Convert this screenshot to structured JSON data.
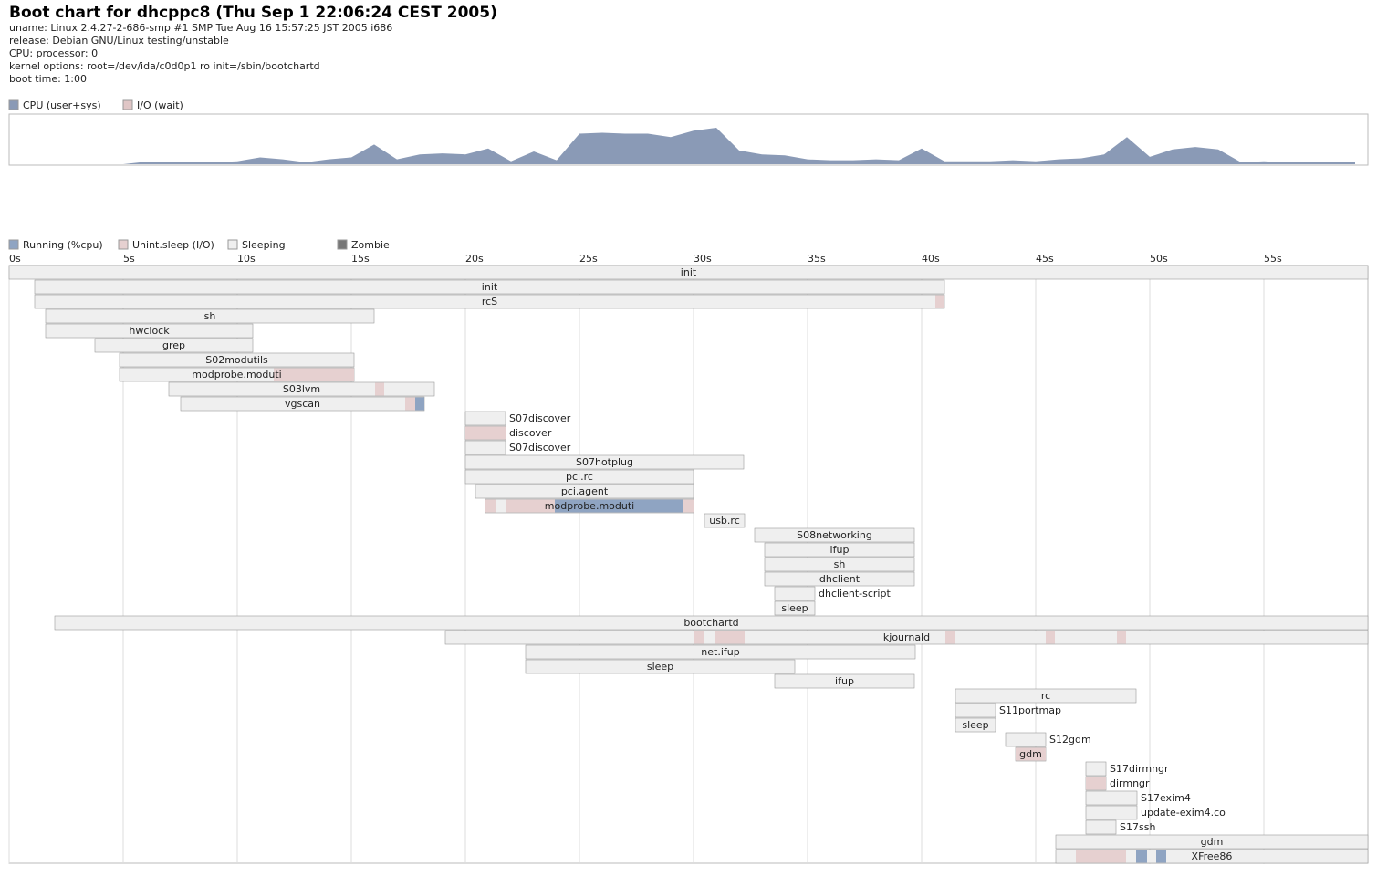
{
  "header": {
    "title": "Boot chart for dhcppc8 (Thu Sep  1 22:06:24 CEST 2005)",
    "info": [
      "uname: Linux 2.4.27-2-686-smp #1 SMP Tue Aug 16 15:57:25 JST 2005 i686",
      "release: Debian GNU/Linux testing/unstable",
      "CPU: processor: 0",
      "kernel options: root=/dev/ida/c0d0p1 ro init=/sbin/bootchartd",
      "boot time: 1:00"
    ]
  },
  "chart_data": [
    {
      "type": "area",
      "xlim": [
        0,
        59.56
      ],
      "ylim": [
        0,
        100
      ],
      "x": [
        0,
        1,
        2,
        3,
        4,
        5,
        6,
        7,
        8,
        9,
        10,
        11,
        12,
        13,
        14,
        15,
        16,
        17,
        18,
        19,
        20,
        21,
        22,
        23,
        24,
        25,
        26,
        27,
        28,
        29,
        30,
        31,
        32,
        33,
        34,
        35,
        36,
        37,
        38,
        39,
        40,
        41,
        42,
        43,
        44,
        45,
        46,
        47,
        48,
        49,
        50,
        51,
        52,
        53,
        54,
        55,
        56,
        57,
        58,
        59
      ],
      "series": [
        {
          "name": "CPU (user+sys)",
          "color": "#8a9ab6",
          "values": [
            0,
            0,
            0,
            0,
            0,
            0,
            5,
            4,
            4,
            4,
            6,
            14,
            10,
            4,
            10,
            14,
            40,
            10,
            20,
            22,
            20,
            32,
            6,
            26,
            8,
            62,
            64,
            62,
            62,
            55,
            68,
            74,
            28,
            20,
            18,
            10,
            8,
            8,
            10,
            8,
            32,
            6,
            6,
            6,
            8,
            6,
            10,
            12,
            20,
            55,
            15,
            30,
            35,
            30,
            4,
            6,
            4,
            4,
            4,
            4
          ]
        },
        {
          "name": "I/O (wait)",
          "color": "#e0c6c6",
          "values": [
            0,
            0,
            0,
            0,
            0,
            0,
            0,
            0,
            0,
            0,
            0,
            0,
            0,
            0,
            0,
            0,
            0,
            0,
            0,
            0,
            0,
            0,
            0,
            0,
            0,
            0,
            0,
            0,
            0,
            0,
            0,
            0,
            0,
            0,
            0,
            0,
            0,
            0,
            0,
            0,
            0,
            0,
            0,
            0,
            0,
            0,
            0,
            0,
            0,
            0,
            0,
            0,
            0,
            0,
            0,
            0,
            0,
            0,
            0,
            0
          ]
        }
      ]
    },
    {
      "type": "gantt",
      "xlim": [
        0,
        59.56
      ],
      "xticks": [
        {
          "value": 0,
          "label": "0s"
        },
        {
          "value": 5,
          "label": "5s"
        },
        {
          "value": 10,
          "label": "10s"
        },
        {
          "value": 15,
          "label": "15s"
        },
        {
          "value": 20,
          "label": "20s"
        },
        {
          "value": 25,
          "label": "25s"
        },
        {
          "value": 30,
          "label": "30s"
        },
        {
          "value": 35,
          "label": "35s"
        },
        {
          "value": 40,
          "label": "40s"
        },
        {
          "value": 45,
          "label": "45s"
        },
        {
          "value": 50,
          "label": "50s"
        },
        {
          "value": 55,
          "label": "55s"
        }
      ],
      "states": [
        {
          "name": "Running (%cpu)",
          "color": "#8fa4c2"
        },
        {
          "name": "Unint.sleep (I/O)",
          "color": "#e6d0d0"
        },
        {
          "name": "Sleeping",
          "color": "#efefef"
        },
        {
          "name": "Zombie",
          "color": "#777777"
        }
      ],
      "processes": [
        {
          "name": "init",
          "start": 0,
          "end": 59.56
        },
        {
          "name": "init",
          "start": 1.12,
          "end": 41.0
        },
        {
          "name": "rcS",
          "start": 1.12,
          "end": 41.0,
          "io": [
            [
              40.6,
              41.0
            ]
          ]
        },
        {
          "name": "sh",
          "start": 1.6,
          "end": 16.0
        },
        {
          "name": "hwclock",
          "start": 1.6,
          "end": 10.68
        },
        {
          "name": "grep",
          "start": 3.76,
          "end": 10.68
        },
        {
          "name": "S02modutils",
          "start": 4.84,
          "end": 15.12
        },
        {
          "name": "modprobe.moduti",
          "start": 4.84,
          "end": 15.12,
          "io": [
            [
              11.6,
              15.12
            ]
          ]
        },
        {
          "name": "S03lvm",
          "start": 7.0,
          "end": 18.64,
          "io": [
            [
              16.04,
              16.44
            ]
          ]
        },
        {
          "name": "vgscan",
          "start": 7.52,
          "end": 18.2,
          "io": [
            [
              17.36,
              17.8
            ]
          ],
          "running": [
            [
              17.8,
              18.2
            ]
          ]
        },
        {
          "name": "S07discover",
          "start": 20.0,
          "end": 21.76
        },
        {
          "name": "discover",
          "start": 20.0,
          "end": 21.76,
          "io": [
            [
              20.0,
              21.76
            ]
          ]
        },
        {
          "name": "S07discover",
          "start": 20.0,
          "end": 21.76
        },
        {
          "name": "S07hotplug",
          "start": 20.0,
          "end": 32.2
        },
        {
          "name": "pci.rc",
          "start": 20.0,
          "end": 30.0
        },
        {
          "name": "pci.agent",
          "start": 20.44,
          "end": 30.0
        },
        {
          "name": "modprobe.moduti",
          "start": 20.88,
          "end": 30.0,
          "io": [
            [
              20.88,
              21.32
            ],
            [
              21.76,
              23.92
            ],
            [
              29.52,
              30.0
            ]
          ],
          "running": [
            [
              23.92,
              29.52
            ]
          ]
        },
        {
          "name": "usb.rc",
          "start": 30.48,
          "end": 32.24
        },
        {
          "name": "S08networking",
          "start": 32.68,
          "end": 39.68
        },
        {
          "name": "ifup",
          "start": 33.12,
          "end": 39.68
        },
        {
          "name": "sh",
          "start": 33.12,
          "end": 39.68
        },
        {
          "name": "dhclient",
          "start": 33.12,
          "end": 39.68
        },
        {
          "name": "dhclient-script",
          "start": 33.56,
          "end": 35.32
        },
        {
          "name": "sleep",
          "start": 33.56,
          "end": 35.32
        },
        {
          "name": "bootchartd",
          "start": 2.0,
          "end": 59.56
        },
        {
          "name": "kjournald",
          "start": 19.12,
          "end": 59.56,
          "io": [
            [
              30.04,
              30.48
            ],
            [
              30.92,
              32.24
            ],
            [
              41.04,
              41.44
            ],
            [
              45.44,
              45.84
            ],
            [
              48.56,
              48.96
            ]
          ]
        },
        {
          "name": "net.ifup",
          "start": 22.64,
          "end": 39.72
        },
        {
          "name": "sleep",
          "start": 22.64,
          "end": 34.44
        },
        {
          "name": "ifup",
          "start": 33.56,
          "end": 39.68
        },
        {
          "name": "rc",
          "start": 41.48,
          "end": 49.4
        },
        {
          "name": "S11portmap",
          "start": 41.48,
          "end": 43.24
        },
        {
          "name": "sleep",
          "start": 41.48,
          "end": 43.24
        },
        {
          "name": "S12gdm",
          "start": 43.68,
          "end": 45.44
        },
        {
          "name": "gdm",
          "start": 44.12,
          "end": 45.44,
          "io": [
            [
              44.12,
              45.44
            ]
          ]
        },
        {
          "name": "S17dirmngr",
          "start": 47.2,
          "end": 48.08
        },
        {
          "name": "dirmngr",
          "start": 47.2,
          "end": 48.08,
          "io": [
            [
              47.2,
              48.08
            ]
          ]
        },
        {
          "name": "S17exim4",
          "start": 47.2,
          "end": 49.44
        },
        {
          "name": "update-exim4.co",
          "start": 47.2,
          "end": 49.44
        },
        {
          "name": "S17ssh",
          "start": 47.2,
          "end": 48.52
        },
        {
          "name": "gdm",
          "start": 45.88,
          "end": 59.56
        },
        {
          "name": "XFree86",
          "start": 45.88,
          "end": 59.56,
          "io": [
            [
              46.76,
              48.96
            ]
          ],
          "running": [
            [
              49.4,
              49.88
            ],
            [
              50.28,
              50.72
            ]
          ]
        }
      ]
    }
  ]
}
